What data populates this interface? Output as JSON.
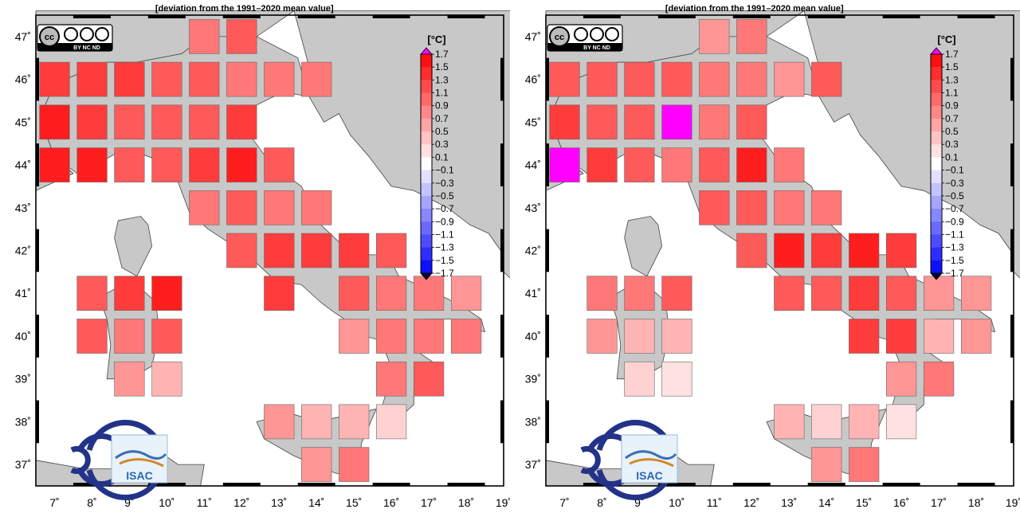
{
  "panels": [
    {
      "title": "[deviation from the 1991–2020 mean value]",
      "colorbar_unit": "[°C]",
      "cells": [
        {
          "lon": 11,
          "lat": 47,
          "v": 0.9
        },
        {
          "lon": 12,
          "lat": 47,
          "v": 1.1
        },
        {
          "lon": 7,
          "lat": 46,
          "v": 1.3
        },
        {
          "lon": 8,
          "lat": 46,
          "v": 1.3
        },
        {
          "lon": 9,
          "lat": 46,
          "v": 1.3
        },
        {
          "lon": 10,
          "lat": 46,
          "v": 1.1
        },
        {
          "lon": 11,
          "lat": 46,
          "v": 1.1
        },
        {
          "lon": 12,
          "lat": 46,
          "v": 0.9
        },
        {
          "lon": 13,
          "lat": 46,
          "v": 0.9
        },
        {
          "lon": 14,
          "lat": 46,
          "v": 0.9
        },
        {
          "lon": 7,
          "lat": 45,
          "v": 1.5
        },
        {
          "lon": 8,
          "lat": 45,
          "v": 1.3
        },
        {
          "lon": 9,
          "lat": 45,
          "v": 1.1
        },
        {
          "lon": 10,
          "lat": 45,
          "v": 1.1
        },
        {
          "lon": 11,
          "lat": 45,
          "v": 1.1
        },
        {
          "lon": 12,
          "lat": 45,
          "v": 1.3
        },
        {
          "lon": 7,
          "lat": 44,
          "v": 1.5
        },
        {
          "lon": 8,
          "lat": 44,
          "v": 1.5
        },
        {
          "lon": 9,
          "lat": 44,
          "v": 1.1
        },
        {
          "lon": 10,
          "lat": 44,
          "v": 1.1
        },
        {
          "lon": 11,
          "lat": 44,
          "v": 1.3
        },
        {
          "lon": 12,
          "lat": 44,
          "v": 1.5
        },
        {
          "lon": 13,
          "lat": 44,
          "v": 1.1
        },
        {
          "lon": 11,
          "lat": 43,
          "v": 0.9
        },
        {
          "lon": 12,
          "lat": 43,
          "v": 1.1
        },
        {
          "lon": 13,
          "lat": 43,
          "v": 0.9
        },
        {
          "lon": 14,
          "lat": 43,
          "v": 0.9
        },
        {
          "lon": 12,
          "lat": 42,
          "v": 1.1
        },
        {
          "lon": 13,
          "lat": 42,
          "v": 1.3
        },
        {
          "lon": 14,
          "lat": 42,
          "v": 1.3
        },
        {
          "lon": 15,
          "lat": 42,
          "v": 1.3
        },
        {
          "lon": 16,
          "lat": 42,
          "v": 1.1
        },
        {
          "lon": 8,
          "lat": 41,
          "v": 1.1
        },
        {
          "lon": 9,
          "lat": 41,
          "v": 1.3
        },
        {
          "lon": 10,
          "lat": 41,
          "v": 1.5
        },
        {
          "lon": 13,
          "lat": 41,
          "v": 1.3
        },
        {
          "lon": 15,
          "lat": 41,
          "v": 1.1
        },
        {
          "lon": 16,
          "lat": 41,
          "v": 0.9
        },
        {
          "lon": 17,
          "lat": 41,
          "v": 0.9
        },
        {
          "lon": 18,
          "lat": 41,
          "v": 0.7
        },
        {
          "lon": 8,
          "lat": 40,
          "v": 1.1
        },
        {
          "lon": 9,
          "lat": 40,
          "v": 0.9
        },
        {
          "lon": 10,
          "lat": 40,
          "v": 1.1
        },
        {
          "lon": 15,
          "lat": 40,
          "v": 0.7
        },
        {
          "lon": 16,
          "lat": 40,
          "v": 0.9
        },
        {
          "lon": 17,
          "lat": 40,
          "v": 0.9
        },
        {
          "lon": 18,
          "lat": 40,
          "v": 0.9
        },
        {
          "lon": 9,
          "lat": 39,
          "v": 0.7
        },
        {
          "lon": 10,
          "lat": 39,
          "v": 0.5
        },
        {
          "lon": 16,
          "lat": 39,
          "v": 0.9
        },
        {
          "lon": 17,
          "lat": 39,
          "v": 1.1
        },
        {
          "lon": 13,
          "lat": 38,
          "v": 0.7
        },
        {
          "lon": 14,
          "lat": 38,
          "v": 0.5
        },
        {
          "lon": 15,
          "lat": 38,
          "v": 0.5
        },
        {
          "lon": 16,
          "lat": 38,
          "v": 0.3
        },
        {
          "lon": 14,
          "lat": 37,
          "v": 0.7
        },
        {
          "lon": 15,
          "lat": 37,
          "v": 0.9
        }
      ]
    },
    {
      "title": "[deviation from the 1991–2020 mean value]",
      "colorbar_unit": "[°C]",
      "cells": [
        {
          "lon": 11,
          "lat": 47,
          "v": 0.7
        },
        {
          "lon": 12,
          "lat": 47,
          "v": 0.9
        },
        {
          "lon": 7,
          "lat": 46,
          "v": 1.1
        },
        {
          "lon": 8,
          "lat": 46,
          "v": 1.1
        },
        {
          "lon": 9,
          "lat": 46,
          "v": 1.1
        },
        {
          "lon": 10,
          "lat": 46,
          "v": 1.1
        },
        {
          "lon": 11,
          "lat": 46,
          "v": 0.9
        },
        {
          "lon": 12,
          "lat": 46,
          "v": 0.9
        },
        {
          "lon": 13,
          "lat": 46,
          "v": 0.7
        },
        {
          "lon": 14,
          "lat": 46,
          "v": 1.1
        },
        {
          "lon": 7,
          "lat": 45,
          "v": 1.3
        },
        {
          "lon": 8,
          "lat": 45,
          "v": 1.1
        },
        {
          "lon": 9,
          "lat": 45,
          "v": 1.1
        },
        {
          "lon": 10,
          "lat": 45,
          "v": "out"
        },
        {
          "lon": 11,
          "lat": 45,
          "v": 0.9
        },
        {
          "lon": 12,
          "lat": 45,
          "v": 1.1
        },
        {
          "lon": 7,
          "lat": 44,
          "v": "out"
        },
        {
          "lon": 8,
          "lat": 44,
          "v": 1.3
        },
        {
          "lon": 9,
          "lat": 44,
          "v": 1.1
        },
        {
          "lon": 10,
          "lat": 44,
          "v": 0.9
        },
        {
          "lon": 11,
          "lat": 44,
          "v": 1.1
        },
        {
          "lon": 12,
          "lat": 44,
          "v": 1.5
        },
        {
          "lon": 13,
          "lat": 44,
          "v": 0.9
        },
        {
          "lon": 11,
          "lat": 43,
          "v": 1.1
        },
        {
          "lon": 12,
          "lat": 43,
          "v": 1.1
        },
        {
          "lon": 13,
          "lat": 43,
          "v": 0.9
        },
        {
          "lon": 14,
          "lat": 43,
          "v": 0.9
        },
        {
          "lon": 12,
          "lat": 42,
          "v": 1.1
        },
        {
          "lon": 13,
          "lat": 42,
          "v": 1.5
        },
        {
          "lon": 14,
          "lat": 42,
          "v": 1.3
        },
        {
          "lon": 15,
          "lat": 42,
          "v": 1.5
        },
        {
          "lon": 16,
          "lat": 42,
          "v": 1.3
        },
        {
          "lon": 8,
          "lat": 41,
          "v": 0.9
        },
        {
          "lon": 9,
          "lat": 41,
          "v": 0.9
        },
        {
          "lon": 10,
          "lat": 41,
          "v": 1.1
        },
        {
          "lon": 13,
          "lat": 41,
          "v": 1.1
        },
        {
          "lon": 14,
          "lat": 41,
          "v": 1.1
        },
        {
          "lon": 15,
          "lat": 41,
          "v": 1.3
        },
        {
          "lon": 16,
          "lat": 41,
          "v": 1.1
        },
        {
          "lon": 17,
          "lat": 41,
          "v": 0.7
        },
        {
          "lon": 18,
          "lat": 41,
          "v": 0.7
        },
        {
          "lon": 8,
          "lat": 40,
          "v": 0.7
        },
        {
          "lon": 9,
          "lat": 40,
          "v": 0.5
        },
        {
          "lon": 10,
          "lat": 40,
          "v": 0.5
        },
        {
          "lon": 15,
          "lat": 40,
          "v": 1.3
        },
        {
          "lon": 16,
          "lat": 40,
          "v": 1.3
        },
        {
          "lon": 17,
          "lat": 40,
          "v": 0.5
        },
        {
          "lon": 18,
          "lat": 40,
          "v": 0.7
        },
        {
          "lon": 9,
          "lat": 39,
          "v": 0.3
        },
        {
          "lon": 10,
          "lat": 39,
          "v": 0.2
        },
        {
          "lon": 16,
          "lat": 39,
          "v": 0.7
        },
        {
          "lon": 17,
          "lat": 39,
          "v": 0.9
        },
        {
          "lon": 13,
          "lat": 38,
          "v": 0.5
        },
        {
          "lon": 14,
          "lat": 38,
          "v": 0.3
        },
        {
          "lon": 15,
          "lat": 38,
          "v": 0.5
        },
        {
          "lon": 16,
          "lat": 38,
          "v": 0.2
        },
        {
          "lon": 14,
          "lat": 37,
          "v": 0.7
        },
        {
          "lon": 15,
          "lat": 37,
          "v": 0.9
        }
      ]
    }
  ],
  "lon_ticks": [
    "7˚",
    "8˚",
    "9˚",
    "10˚",
    "11˚",
    "12˚",
    "13˚",
    "14˚",
    "15˚",
    "16˚",
    "17˚",
    "18˚",
    "19˚"
  ],
  "lat_ticks": [
    "47˚",
    "46˚",
    "45˚",
    "44˚",
    "43˚",
    "42˚",
    "41˚",
    "40˚",
    "39˚",
    "38˚",
    "37˚"
  ],
  "colorbar_labels": [
    "1.7",
    "1.5",
    "1.3",
    "1.1",
    "0.9",
    "0.7",
    "0.5",
    "0.3",
    "0.1",
    "−0.1",
    "−0.3",
    "−0.5",
    "−0.7",
    "−0.9",
    "−1.1",
    "−1.3",
    "−1.5",
    "−1.7"
  ],
  "license_badge": {
    "cc": "cc",
    "parts": "BY  NC  ND"
  },
  "logo_isac": "ISAC",
  "colors": {
    "positive": "#ff0000",
    "negative": "#0000ff",
    "out_of_range": "#ff00ff",
    "land": "#c8c8c8",
    "sea": "#ffffff"
  }
}
